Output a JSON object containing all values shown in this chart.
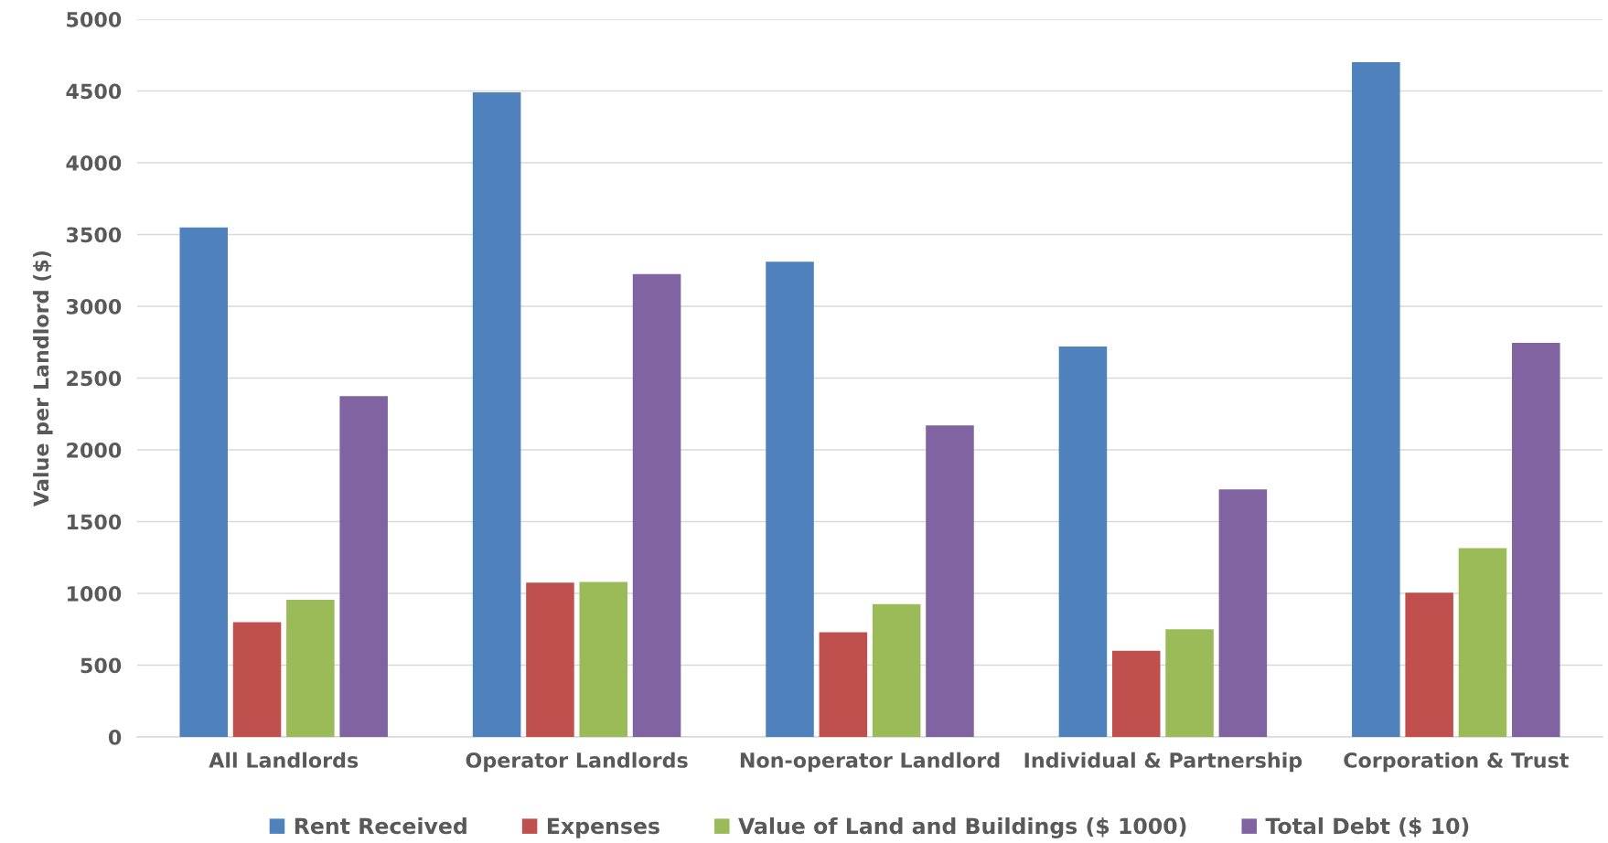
{
  "chart_data": {
    "type": "bar",
    "ylabel": "Value per Landlord ($)",
    "categories": [
      "All Landlords",
      "Operator Landlords",
      "Non-operator Landlord",
      "Individual & Partnership",
      "Corporation & Trust"
    ],
    "series": [
      {
        "name": "Rent Received",
        "color": "#4f81bd",
        "values": [
          3550,
          4490,
          3310,
          2720,
          4700
        ]
      },
      {
        "name": "Expenses",
        "color": "#c0504d",
        "values": [
          800,
          1075,
          730,
          600,
          1005
        ]
      },
      {
        "name": "Value of Land and Buildings ($ 1000)",
        "color": "#9bbb59",
        "values": [
          955,
          1080,
          925,
          750,
          1315
        ]
      },
      {
        "name": "Total Debt ($ 10)",
        "color": "#8064a2",
        "values": [
          2375,
          3225,
          2170,
          1725,
          2745
        ]
      }
    ],
    "ylim": [
      0,
      5000
    ],
    "yticks": [
      0,
      500,
      1000,
      1500,
      2000,
      2500,
      3000,
      3500,
      4000,
      4500,
      5000
    ],
    "grid": "y",
    "legend": "bottom"
  }
}
